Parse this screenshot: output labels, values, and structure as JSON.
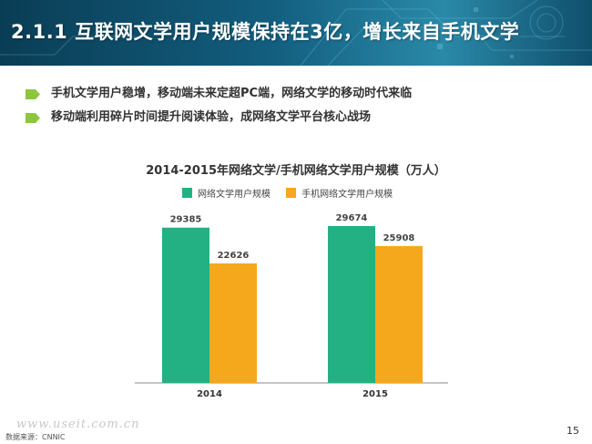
{
  "header": {
    "title": "2.1.1 互联网文学用户规模保持在3亿，增长来自手机文学"
  },
  "bullets": [
    "手机文学用户稳增，移动端未来定超PC端，网络文学的移动时代来临",
    "移动端利用碎片时间提升阅读体验，成网络文学平台核心战场"
  ],
  "colors": {
    "series1": "#23b184",
    "series2": "#f5a81b",
    "bullet": "#8cc63f"
  },
  "chart_data": {
    "type": "bar",
    "title": "2014-2015年网络文学/手机网络文学用户规模（万人）",
    "categories": [
      "2014",
      "2015"
    ],
    "series": [
      {
        "name": "网络文学用户规模",
        "values": [
          29385,
          29674
        ]
      },
      {
        "name": "手机网络文学用户规模",
        "values": [
          22626,
          25908
        ]
      }
    ],
    "data_labels": true,
    "ylim": [
      0,
      33000
    ],
    "grid": false,
    "legend": "top"
  },
  "footer": {
    "source": "数据来源：CNNIC",
    "watermark": "www.useit.com.cn",
    "page": "15"
  }
}
